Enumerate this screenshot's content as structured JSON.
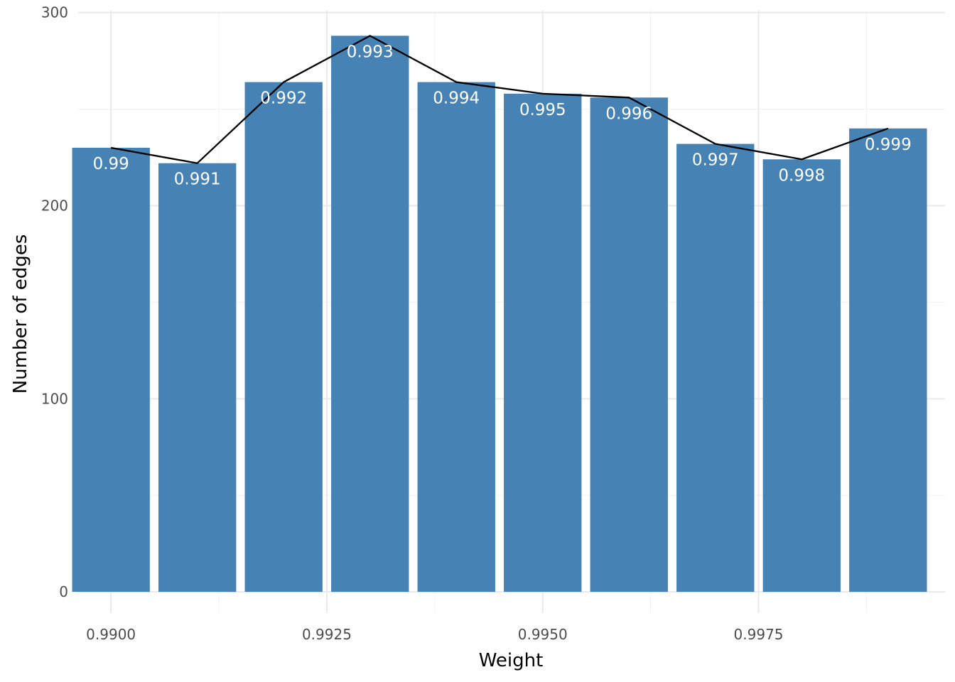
{
  "chart_data": {
    "type": "bar",
    "xlabel": "Weight",
    "ylabel": "Number of edges",
    "x": [
      0.99,
      0.991,
      0.992,
      0.993,
      0.994,
      0.995,
      0.996,
      0.997,
      0.998,
      0.999
    ],
    "values": [
      230,
      222,
      264,
      288,
      264,
      258,
      256,
      232,
      224,
      240
    ],
    "bar_labels": [
      "0.99",
      "0.991",
      "0.992",
      "0.993",
      "0.994",
      "0.995",
      "0.996",
      "0.997",
      "0.998",
      "0.999"
    ],
    "bar_width": 0.0009,
    "line_overlay": true,
    "xlim": [
      0.98962,
      0.99966
    ],
    "ylim": [
      -11,
      301
    ],
    "x_ticks": [
      0.99,
      0.9925,
      0.995,
      0.9975
    ],
    "x_tick_labels": [
      "0.9900",
      "0.9925",
      "0.9950",
      "0.9975"
    ],
    "y_ticks": [
      0,
      100,
      200,
      300
    ],
    "y_tick_labels": [
      "0",
      "100",
      "200",
      "300"
    ],
    "x_minor_ticks": [
      0.99125,
      0.99375,
      0.99625,
      0.99875
    ],
    "y_minor_ticks": [
      50,
      150,
      250
    ],
    "grid": true,
    "colors": {
      "bar": "#4682b4",
      "line": "#000000",
      "label": "#ffffff"
    }
  }
}
